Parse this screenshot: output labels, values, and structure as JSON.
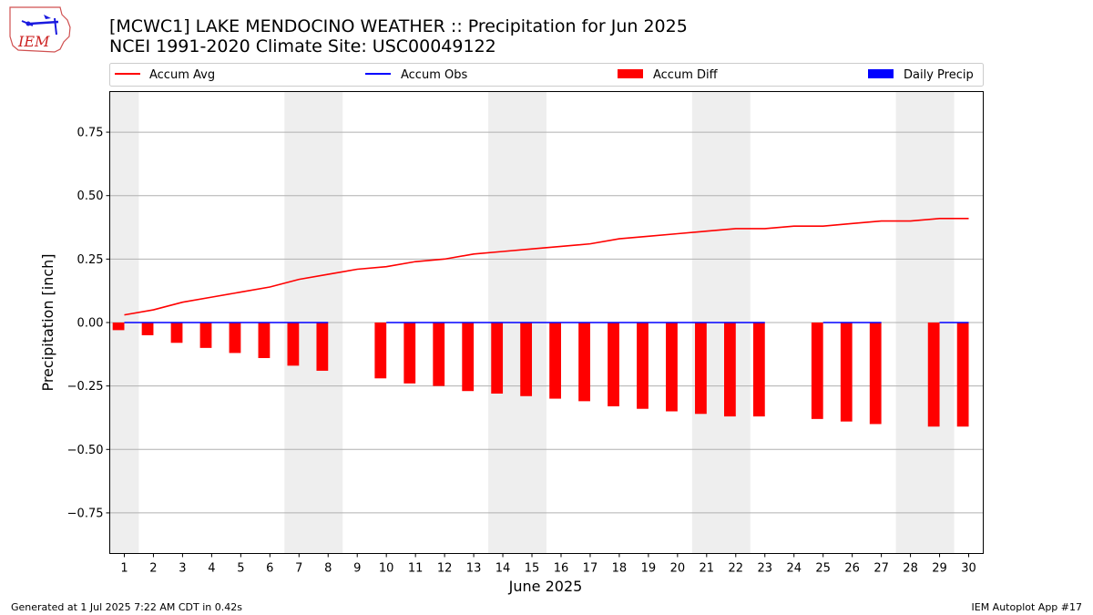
{
  "header": {
    "logo_text": "IEM",
    "title_line1": "[MCWC1] LAKE MENDOCINO WEATHER :: Precipitation for Jun 2025",
    "title_line2": "NCEI 1991-2020 Climate Site: USC00049122"
  },
  "footer": {
    "generated": "Generated at 1 Jul 2025 7:22 AM CDT in 0.42s",
    "app": "IEM Autoplot App #17"
  },
  "colors": {
    "accum_avg": "#ff0000",
    "accum_obs": "#0000ff",
    "accum_diff": "#ff0000",
    "daily_precip": "#0000ff",
    "weekend_band": "#eeeeee",
    "grid": "#b0b0b0"
  },
  "chart_data": {
    "type": "bar",
    "xlabel": "June 2025",
    "ylabel": "Precipitation [inch]",
    "ylim": [
      -0.91,
      0.91
    ],
    "xlim": [
      0.5,
      30.5
    ],
    "grid": true,
    "legend_position": "top",
    "x_ticks": [
      "1",
      "2",
      "3",
      "4",
      "5",
      "6",
      "7",
      "8",
      "9",
      "10",
      "11",
      "12",
      "13",
      "14",
      "15",
      "16",
      "17",
      "18",
      "19",
      "20",
      "21",
      "22",
      "23",
      "24",
      "25",
      "26",
      "27",
      "28",
      "29",
      "30"
    ],
    "y_ticks": [
      "−0.75",
      "−0.50",
      "−0.25",
      "0.00",
      "0.25",
      "0.50",
      "0.75"
    ],
    "y_tick_values": [
      -0.75,
      -0.5,
      -0.25,
      0,
      0.25,
      0.5,
      0.75
    ],
    "weekend_days": [
      [
        1,
        1
      ],
      [
        7,
        8
      ],
      [
        14,
        15
      ],
      [
        21,
        22
      ],
      [
        28,
        29
      ]
    ],
    "legend": [
      "Accum Avg",
      "Accum Obs",
      "Accum Diff",
      "Daily Precip"
    ],
    "days": [
      1,
      2,
      3,
      4,
      5,
      6,
      7,
      8,
      9,
      10,
      11,
      12,
      13,
      14,
      15,
      16,
      17,
      18,
      19,
      20,
      21,
      22,
      23,
      24,
      25,
      26,
      27,
      28,
      29,
      30
    ],
    "accum_avg": [
      0.03,
      0.05,
      0.08,
      0.1,
      0.12,
      0.14,
      0.17,
      0.19,
      0.21,
      0.22,
      0.24,
      0.25,
      0.27,
      0.28,
      0.29,
      0.3,
      0.31,
      0.33,
      0.34,
      0.35,
      0.36,
      0.37,
      0.37,
      0.38,
      0.38,
      0.39,
      0.4,
      0.4,
      0.41,
      0.41
    ],
    "accum_diff": [
      -0.03,
      -0.05,
      -0.08,
      -0.1,
      -0.12,
      -0.14,
      -0.17,
      -0.19,
      null,
      -0.22,
      -0.24,
      -0.25,
      -0.27,
      -0.28,
      -0.29,
      -0.3,
      -0.31,
      -0.33,
      -0.34,
      -0.35,
      -0.36,
      -0.37,
      -0.37,
      null,
      -0.38,
      -0.39,
      -0.4,
      null,
      -0.41,
      -0.41
    ],
    "accum_obs": [
      0,
      0,
      0,
      0,
      0,
      0,
      0,
      0,
      null,
      0,
      0,
      0,
      0,
      0,
      0,
      0,
      0,
      0,
      0,
      0,
      0,
      0,
      0,
      null,
      0,
      0,
      0,
      null,
      0,
      0
    ],
    "daily_precip": [
      0,
      0,
      0,
      0,
      0,
      0,
      0,
      0,
      null,
      0,
      0,
      0,
      0,
      0,
      0,
      0,
      0,
      0,
      0,
      0,
      0,
      0,
      0,
      null,
      0,
      0,
      0,
      null,
      0,
      0
    ]
  }
}
